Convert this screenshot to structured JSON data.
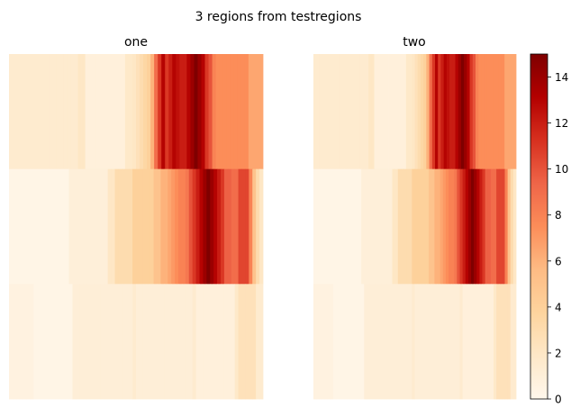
{
  "chart_data": {
    "type": "heatmap",
    "title": "3 regions from testregions",
    "colormap": "OrRd",
    "colorbar": {
      "min": 0,
      "max": 15,
      "ticks": [
        0,
        2,
        4,
        6,
        8,
        10,
        12,
        14
      ]
    },
    "panels": [
      {
        "title": "one",
        "rows": [
          [
            1.5,
            1.5,
            1.5,
            1.5,
            1.5,
            1.5,
            1.5,
            1.5,
            1.5,
            1.5,
            1.5,
            1.5,
            1.5,
            1.5,
            1.5,
            1.5,
            1.5,
            1.5,
            1.5,
            2.0,
            2.0,
            0.9,
            0.9,
            0.9,
            0.9,
            0.9,
            0.9,
            0.9,
            0.9,
            0.9,
            0.9,
            0.9,
            1.8,
            1.8,
            2.0,
            2.5,
            3.0,
            3.5,
            4.0,
            6.0,
            9.0,
            11.0,
            13.0,
            11.0,
            12.0,
            13.0,
            12.5,
            12.0,
            12.0,
            13.0,
            14.0,
            15.0,
            14.0,
            13.0,
            11.0,
            10.0,
            8.0,
            7.5,
            7.5,
            7.5,
            7.5,
            7.5,
            7.5,
            7.5,
            7.5,
            7.5,
            6.5,
            6.5,
            6.5,
            6.5
          ],
          [
            0.3,
            0.3,
            0.3,
            0.3,
            0.3,
            0.3,
            0.3,
            0.3,
            0.3,
            0.3,
            0.3,
            0.3,
            0.3,
            0.3,
            0.3,
            0.3,
            0.3,
            1.0,
            1.0,
            1.0,
            1.0,
            1.0,
            1.0,
            1.0,
            1.0,
            1.0,
            1.0,
            1.0,
            2.0,
            2.0,
            3.0,
            3.0,
            3.0,
            3.0,
            3.0,
            4.0,
            4.0,
            4.0,
            4.0,
            4.0,
            4.0,
            5.0,
            5.0,
            6.0,
            6.0,
            6.5,
            7.0,
            7.5,
            8.0,
            8.0,
            8.5,
            10.0,
            11.0,
            12.0,
            13.0,
            14.0,
            15.0,
            14.0,
            13.0,
            12.0,
            11.0,
            9.5,
            9.5,
            9.0,
            9.0,
            10.5,
            10.5,
            10.5,
            8.0,
            5.0,
            3.0,
            2.0
          ],
          [
            0.6,
            0.6,
            0.6,
            0.6,
            0.6,
            0.6,
            0.6,
            0.3,
            0.3,
            0.3,
            0.3,
            0.3,
            0.3,
            0.3,
            0.3,
            0.3,
            0.3,
            0.3,
            1.1,
            1.1,
            1.1,
            1.1,
            1.1,
            1.1,
            1.1,
            1.1,
            1.1,
            1.1,
            1.1,
            1.1,
            1.1,
            1.1,
            1.1,
            1.1,
            1.1,
            1.5,
            1.1,
            1.1,
            1.1,
            1.1,
            1.1,
            1.1,
            1.1,
            1.1,
            1.1,
            1.1,
            1.1,
            1.1,
            1.1,
            1.1,
            1.1,
            1.1,
            1.5,
            0.9,
            0.9,
            0.9,
            0.9,
            0.9,
            0.9,
            0.9,
            0.9,
            0.9,
            0.9,
            0.9,
            1.8,
            2.5,
            2.5,
            2.5,
            2.5,
            2.5,
            1.5,
            1.5
          ]
        ]
      },
      {
        "title": "two",
        "rows": [
          [
            1.5,
            1.5,
            1.5,
            1.5,
            1.5,
            1.5,
            1.5,
            1.5,
            1.5,
            1.5,
            1.5,
            1.5,
            1.5,
            1.5,
            1.5,
            1.5,
            1.5,
            1.5,
            1.5,
            2.0,
            2.0,
            0.9,
            0.9,
            0.9,
            0.9,
            0.9,
            0.9,
            0.9,
            0.9,
            0.9,
            0.9,
            0.9,
            1.8,
            1.8,
            2.0,
            2.5,
            3.0,
            3.5,
            4.0,
            6.0,
            9.0,
            11.0,
            13.0,
            11.0,
            12.0,
            13.0,
            12.5,
            12.0,
            12.0,
            13.0,
            14.0,
            15.0,
            14.0,
            13.0,
            11.0,
            10.0,
            8.0,
            7.5,
            7.5,
            7.5,
            7.5,
            7.5,
            7.5,
            7.5,
            7.5,
            7.5,
            6.5,
            6.5,
            6.5,
            6.5
          ],
          [
            0.3,
            0.3,
            0.3,
            0.3,
            0.3,
            0.3,
            0.3,
            0.3,
            0.3,
            0.3,
            0.3,
            0.3,
            0.3,
            0.3,
            0.3,
            0.3,
            0.3,
            1.0,
            1.0,
            1.0,
            1.0,
            1.0,
            1.0,
            1.0,
            1.0,
            1.0,
            1.0,
            1.0,
            2.0,
            2.0,
            3.0,
            3.0,
            3.0,
            3.0,
            3.0,
            4.0,
            4.0,
            4.0,
            4.0,
            4.0,
            4.0,
            5.0,
            5.0,
            6.0,
            6.0,
            6.5,
            7.0,
            7.5,
            8.0,
            8.0,
            8.5,
            10.0,
            11.0,
            12.0,
            13.0,
            14.0,
            15.0,
            14.0,
            13.0,
            12.0,
            11.0,
            9.5,
            9.5,
            9.0,
            9.0,
            10.5,
            10.5,
            10.5,
            8.0,
            5.0,
            3.0,
            2.0
          ],
          [
            0.6,
            0.6,
            0.6,
            0.6,
            0.6,
            0.6,
            0.6,
            0.3,
            0.3,
            0.3,
            0.3,
            0.3,
            0.3,
            0.3,
            0.3,
            0.3,
            0.3,
            0.3,
            1.1,
            1.1,
            1.1,
            1.1,
            1.1,
            1.1,
            1.1,
            1.1,
            1.1,
            1.1,
            1.1,
            1.1,
            1.1,
            1.1,
            1.1,
            1.1,
            1.1,
            1.5,
            1.1,
            1.1,
            1.1,
            1.1,
            1.1,
            1.1,
            1.1,
            1.1,
            1.1,
            1.1,
            1.1,
            1.1,
            1.1,
            1.1,
            1.1,
            1.1,
            1.5,
            0.9,
            0.9,
            0.9,
            0.9,
            0.9,
            0.9,
            0.9,
            0.9,
            0.9,
            0.9,
            0.9,
            1.8,
            2.5,
            2.5,
            2.5,
            2.5,
            2.5,
            1.5,
            1.5
          ]
        ]
      }
    ]
  }
}
